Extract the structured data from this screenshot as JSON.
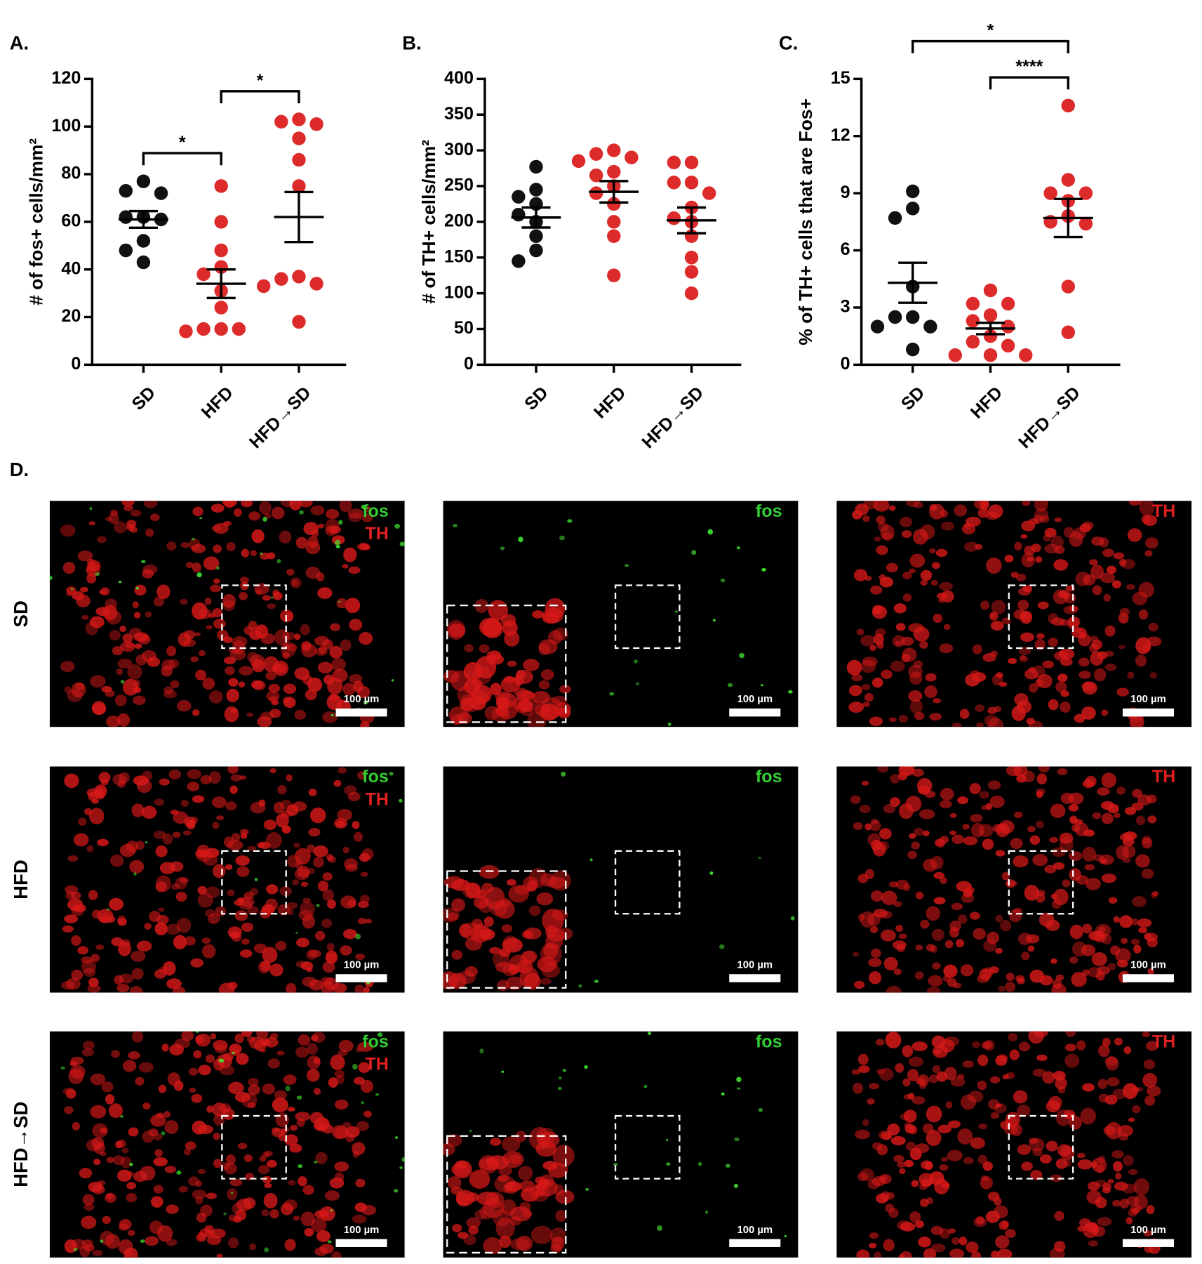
{
  "chart_data": [
    {
      "type": "scatter",
      "panel": "A.",
      "y_label": "# of fos+ cells/mm²",
      "categories": [
        "SD",
        "HFD",
        "HFD→SD"
      ],
      "ylim": [
        0,
        120
      ],
      "yticks": [
        0,
        20,
        40,
        60,
        80,
        100,
        120
      ],
      "series": [
        {
          "color": "#111111",
          "values": [
            77,
            73,
            72,
            62,
            62,
            61,
            52,
            48,
            43
          ],
          "mean": 61,
          "sem": 3.5
        },
        {
          "color": "#dd2a2a",
          "values": [
            75,
            60,
            48,
            41,
            38,
            31,
            24,
            15,
            15,
            15,
            14
          ],
          "mean": 34,
          "sem": 6
        },
        {
          "color": "#dd2a2a",
          "values": [
            103,
            102,
            101,
            95,
            86,
            75,
            37,
            36,
            34,
            33,
            18
          ],
          "mean": 62,
          "sem": 10.5
        }
      ],
      "comparisons": [
        {
          "groups": [
            0,
            1
          ],
          "label": "*"
        },
        {
          "groups": [
            1,
            2
          ],
          "label": "*"
        }
      ]
    },
    {
      "type": "scatter",
      "panel": "B.",
      "y_label": "# of TH+ cells/mm²",
      "categories": [
        "SD",
        "HFD",
        "HFD→SD"
      ],
      "ylim": [
        0,
        400
      ],
      "yticks": [
        0,
        50,
        100,
        150,
        200,
        250,
        300,
        350,
        400
      ],
      "series": [
        {
          "color": "#111111",
          "values": [
            277,
            245,
            235,
            225,
            210,
            200,
            180,
            160,
            145
          ],
          "mean": 206,
          "sem": 14
        },
        {
          "color": "#dd2a2a",
          "values": [
            300,
            295,
            290,
            285,
            270,
            265,
            250,
            240,
            225,
            200,
            180,
            125
          ],
          "mean": 242,
          "sem": 15
        },
        {
          "color": "#dd2a2a",
          "values": [
            283,
            283,
            255,
            255,
            240,
            220,
            205,
            200,
            180,
            150,
            130,
            100
          ],
          "mean": 202,
          "sem": 18
        }
      ],
      "comparisons": []
    },
    {
      "type": "scatter",
      "panel": "C.",
      "y_label": "% of TH+ cells that are Fos+",
      "categories": [
        "SD",
        "HFD",
        "HFD→SD"
      ],
      "ylim": [
        0,
        15
      ],
      "yticks": [
        0,
        3,
        6,
        9,
        12,
        15
      ],
      "series": [
        {
          "color": "#111111",
          "values": [
            9.1,
            8.2,
            7.7,
            4.1,
            2.5,
            2.5,
            2.0,
            2.0,
            0.8
          ],
          "mean": 4.3,
          "sem": 1.05
        },
        {
          "color": "#dd2a2a",
          "values": [
            3.9,
            3.2,
            3.2,
            2.6,
            2.3,
            2.0,
            1.5,
            1.2,
            1.0,
            0.5,
            0.5,
            0.5
          ],
          "mean": 1.9,
          "sem": 0.3
        },
        {
          "color": "#dd2a2a",
          "values": [
            13.6,
            9.7,
            9.0,
            9.0,
            8.6,
            7.8,
            7.5,
            7.4,
            4.1,
            1.7
          ],
          "mean": 7.7,
          "sem": 1.0
        }
      ],
      "comparisons": [
        {
          "groups": [
            1,
            2
          ],
          "label": "****"
        },
        {
          "groups": [
            0,
            2
          ],
          "label": "*"
        }
      ]
    }
  ],
  "panel_d": {
    "label": "D.",
    "rows": [
      "SD",
      "HFD",
      "HFD→SD"
    ],
    "columns": [
      {
        "channels": [
          {
            "name": "fos",
            "color": "#33cc33"
          },
          {
            "name": "TH",
            "color": "#e02020"
          }
        ]
      },
      {
        "channels": [
          {
            "name": "fos",
            "color": "#33cc33"
          }
        ]
      },
      {
        "channels": [
          {
            "name": "TH",
            "color": "#e02020"
          }
        ]
      }
    ],
    "scale_bar": "100 µm"
  }
}
